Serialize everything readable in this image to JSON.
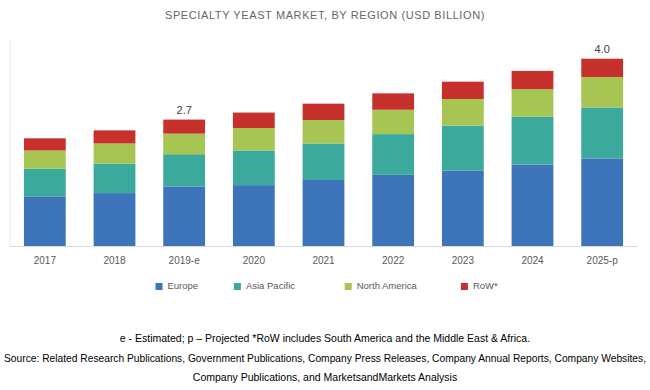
{
  "chart_data": {
    "type": "bar",
    "stacked": true,
    "title": "SPECIALTY YEAST MARKET, BY REGION (USD BILLION)",
    "categories": [
      "2017",
      "2018",
      "2019-e",
      "2020",
      "2021",
      "2022",
      "2023",
      "2024",
      "2025-p"
    ],
    "series": [
      {
        "name": "Europe",
        "color": "#3e74ba",
        "values": [
          1.06,
          1.13,
          1.27,
          1.3,
          1.41,
          1.52,
          1.61,
          1.74,
          1.87
        ]
      },
      {
        "name": "Asia Pacific",
        "color": "#3ba99c",
        "values": [
          0.59,
          0.63,
          0.69,
          0.74,
          0.78,
          0.87,
          0.96,
          1.02,
          1.09
        ]
      },
      {
        "name": "North America",
        "color": "#a7c553",
        "values": [
          0.39,
          0.43,
          0.44,
          0.48,
          0.5,
          0.52,
          0.57,
          0.59,
          0.65
        ]
      },
      {
        "name": "RoW*",
        "color": "#c7312d",
        "values": [
          0.26,
          0.28,
          0.3,
          0.33,
          0.35,
          0.35,
          0.37,
          0.39,
          0.39
        ]
      }
    ],
    "ylim": [
      0,
      4.4
    ],
    "tick_labels": "x",
    "grid": false,
    "legend": "bottom",
    "annotations": [
      {
        "category": "2019-e",
        "value": 2.7,
        "label": "2.7"
      },
      {
        "category": "2025-p",
        "value": 4.0,
        "label": "4.0"
      }
    ],
    "footnotes": [
      "e - Estimated; p – Projected *RoW includes South America and the Middle East & Africa.",
      "Source: Related Research Publications, Government Publications, Company Press Releases, Company Annual Reports, Company Websites,",
      "Company Publications, and MarketsandMarkets Analysis"
    ]
  }
}
